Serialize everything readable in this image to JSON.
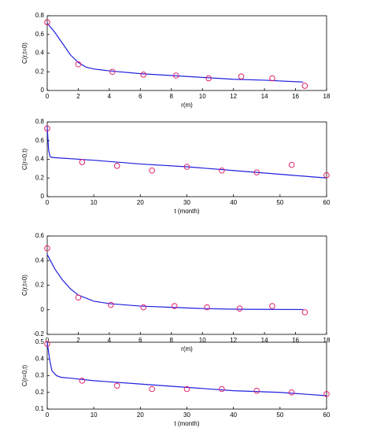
{
  "chart_data": [
    {
      "type": "line",
      "xlabel": "r(m)",
      "ylabel": "C(r,t=0)",
      "xlim": [
        0,
        18
      ],
      "xticks": [
        0,
        2,
        4,
        6,
        8,
        10,
        12,
        14,
        16,
        18
      ],
      "ylim": [
        0,
        0.8
      ],
      "yticks": [
        0,
        0.2,
        0.4,
        0.6,
        0.8
      ],
      "series": [
        {
          "style": "line",
          "color": "#2020e0",
          "x": [
            0,
            0.5,
            1,
            1.5,
            2,
            2.5,
            3,
            4,
            6,
            8,
            10,
            12,
            14,
            16.5
          ],
          "values": [
            0.72,
            0.62,
            0.5,
            0.38,
            0.3,
            0.25,
            0.23,
            0.21,
            0.18,
            0.16,
            0.14,
            0.12,
            0.11,
            0.09
          ]
        },
        {
          "style": "marker",
          "color": "#e0206a",
          "x": [
            0,
            2,
            4.2,
            6.2,
            8.3,
            10.4,
            12.5,
            14.5,
            16.6
          ],
          "values": [
            0.73,
            0.28,
            0.2,
            0.17,
            0.16,
            0.13,
            0.15,
            0.13,
            0.05
          ]
        }
      ]
    },
    {
      "type": "line",
      "xlabel": "t (month)",
      "ylabel": "C(r=0,t)",
      "xlim": [
        0,
        60
      ],
      "xticks": [
        0,
        10,
        20,
        30,
        40,
        50,
        60
      ],
      "ylim": [
        0,
        0.8
      ],
      "yticks": [
        0,
        0.2,
        0.4,
        0.6,
        0.8
      ],
      "series": [
        {
          "style": "line",
          "color": "#2020e0",
          "x": [
            0,
            0.3,
            0.6,
            1,
            10,
            20,
            30,
            40,
            50,
            60
          ],
          "values": [
            0.75,
            0.5,
            0.43,
            0.42,
            0.39,
            0.35,
            0.32,
            0.28,
            0.24,
            0.2
          ]
        },
        {
          "style": "marker",
          "color": "#e0206a",
          "x": [
            0,
            7.5,
            15,
            22.5,
            30,
            37.5,
            45,
            52.5,
            60
          ],
          "values": [
            0.73,
            0.37,
            0.33,
            0.28,
            0.32,
            0.28,
            0.26,
            0.34,
            0.23
          ]
        }
      ]
    },
    {
      "type": "line",
      "xlabel": "r(m)",
      "ylabel": "C(r,t=0)",
      "xlim": [
        0,
        18
      ],
      "xticks": [
        0,
        2,
        4,
        6,
        8,
        10,
        12,
        14,
        16,
        18
      ],
      "ylim": [
        -0.2,
        0.6
      ],
      "yticks": [
        -0.2,
        0,
        0.2,
        0.4,
        0.6
      ],
      "series": [
        {
          "style": "line",
          "color": "#2020e0",
          "x": [
            0,
            0.5,
            1,
            1.5,
            2,
            3,
            4,
            6,
            8,
            10,
            12,
            14,
            16.5
          ],
          "values": [
            0.45,
            0.33,
            0.24,
            0.17,
            0.12,
            0.07,
            0.05,
            0.03,
            0.02,
            0.01,
            0.005,
            0.003,
            0.002
          ]
        },
        {
          "style": "marker",
          "color": "#e0206a",
          "x": [
            0,
            2,
            4.1,
            6.2,
            8.2,
            10.3,
            12.4,
            14.5,
            16.6
          ],
          "values": [
            0.5,
            0.1,
            0.04,
            0.02,
            0.03,
            0.02,
            0.01,
            0.03,
            -0.02
          ]
        }
      ]
    },
    {
      "type": "line",
      "xlabel": "t (month)",
      "ylabel": "C(r=0,t)",
      "xlim": [
        0,
        60
      ],
      "xticks": [
        0,
        10,
        20,
        30,
        40,
        50,
        60
      ],
      "ylim": [
        0.1,
        0.5
      ],
      "yticks": [
        0.1,
        0.2,
        0.3,
        0.4,
        0.5
      ],
      "series": [
        {
          "style": "line",
          "color": "#2020e0",
          "x": [
            0,
            0.5,
            1,
            2,
            3,
            5,
            10,
            20,
            30,
            40,
            50,
            60
          ],
          "values": [
            0.5,
            0.4,
            0.33,
            0.3,
            0.29,
            0.285,
            0.27,
            0.25,
            0.23,
            0.21,
            0.2,
            0.18
          ]
        },
        {
          "style": "marker",
          "color": "#e0206a",
          "x": [
            0,
            7.5,
            15,
            22.5,
            30,
            37.5,
            45,
            52.5,
            60
          ],
          "values": [
            0.49,
            0.27,
            0.24,
            0.22,
            0.22,
            0.22,
            0.21,
            0.2,
            0.19
          ]
        }
      ]
    }
  ]
}
